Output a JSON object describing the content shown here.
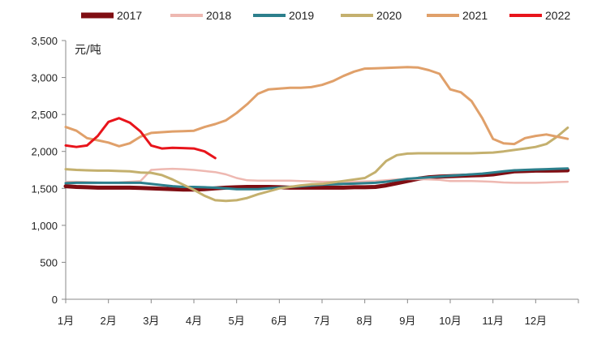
{
  "chart_data": {
    "type": "line",
    "ylabel": "元/吨",
    "ylim": [
      0,
      3500
    ],
    "y_ticks": [
      "0",
      "500",
      "1,000",
      "1,500",
      "2,000",
      "2,500",
      "3,000",
      "3,500"
    ],
    "y_tick_values": [
      0,
      500,
      1000,
      1500,
      2000,
      2500,
      3000,
      3500
    ],
    "categories": [
      "1月",
      "2月",
      "3月",
      "4月",
      "5月",
      "6月",
      "7月",
      "8月",
      "9月",
      "10月",
      "11月",
      "12月"
    ],
    "grid": false,
    "legend_position": "top",
    "series": [
      {
        "name": "2017",
        "color": "#7f0d12",
        "width": 5,
        "points": [
          [
            1,
            1530
          ],
          [
            1.25,
            1520
          ],
          [
            1.5,
            1515
          ],
          [
            1.75,
            1510
          ],
          [
            2,
            1510
          ],
          [
            2.25,
            1510
          ],
          [
            2.5,
            1510
          ],
          [
            2.75,
            1505
          ],
          [
            3,
            1500
          ],
          [
            3.25,
            1495
          ],
          [
            3.5,
            1490
          ],
          [
            3.75,
            1485
          ],
          [
            4,
            1485
          ],
          [
            4.25,
            1490
          ],
          [
            4.5,
            1500
          ],
          [
            4.75,
            1510
          ],
          [
            5,
            1515
          ],
          [
            5.25,
            1520
          ],
          [
            5.5,
            1520
          ],
          [
            5.75,
            1520
          ],
          [
            6,
            1515
          ],
          [
            6.25,
            1510
          ],
          [
            6.5,
            1510
          ],
          [
            6.75,
            1510
          ],
          [
            7,
            1510
          ],
          [
            7.25,
            1510
          ],
          [
            7.5,
            1510
          ],
          [
            7.75,
            1515
          ],
          [
            8,
            1515
          ],
          [
            8.25,
            1520
          ],
          [
            8.5,
            1540
          ],
          [
            8.75,
            1570
          ],
          [
            9,
            1600
          ],
          [
            9.25,
            1630
          ],
          [
            9.5,
            1650
          ],
          [
            9.75,
            1660
          ],
          [
            10,
            1665
          ],
          [
            10.25,
            1670
          ],
          [
            10.5,
            1675
          ],
          [
            10.75,
            1680
          ],
          [
            11,
            1690
          ],
          [
            11.25,
            1710
          ],
          [
            11.5,
            1730
          ],
          [
            11.75,
            1735
          ],
          [
            12,
            1740
          ],
          [
            12.25,
            1740
          ],
          [
            12.5,
            1742
          ],
          [
            12.75,
            1745
          ]
        ]
      },
      {
        "name": "2018",
        "color": "#eeb8b1",
        "width": 2.5,
        "points": [
          [
            1,
            1590
          ],
          [
            1.25,
            1590
          ],
          [
            1.5,
            1585
          ],
          [
            1.75,
            1580
          ],
          [
            2,
            1575
          ],
          [
            2.25,
            1580
          ],
          [
            2.5,
            1590
          ],
          [
            2.75,
            1600
          ],
          [
            3,
            1750
          ],
          [
            3.25,
            1760
          ],
          [
            3.5,
            1765
          ],
          [
            3.75,
            1760
          ],
          [
            4,
            1750
          ],
          [
            4.25,
            1735
          ],
          [
            4.5,
            1720
          ],
          [
            4.75,
            1690
          ],
          [
            5,
            1640
          ],
          [
            5.25,
            1610
          ],
          [
            5.5,
            1605
          ],
          [
            5.75,
            1605
          ],
          [
            6,
            1605
          ],
          [
            6.25,
            1605
          ],
          [
            6.5,
            1600
          ],
          [
            6.75,
            1595
          ],
          [
            7,
            1590
          ],
          [
            7.25,
            1590
          ],
          [
            7.5,
            1590
          ],
          [
            7.75,
            1590
          ],
          [
            8,
            1595
          ],
          [
            8.25,
            1600
          ],
          [
            8.5,
            1610
          ],
          [
            8.75,
            1620
          ],
          [
            9,
            1625
          ],
          [
            9.25,
            1625
          ],
          [
            9.5,
            1620
          ],
          [
            9.75,
            1615
          ],
          [
            10,
            1600
          ],
          [
            10.25,
            1600
          ],
          [
            10.5,
            1600
          ],
          [
            10.75,
            1595
          ],
          [
            11,
            1590
          ],
          [
            11.25,
            1580
          ],
          [
            11.5,
            1575
          ],
          [
            11.75,
            1575
          ],
          [
            12,
            1575
          ],
          [
            12.25,
            1580
          ],
          [
            12.5,
            1585
          ],
          [
            12.75,
            1590
          ]
        ]
      },
      {
        "name": "2019",
        "color": "#2c7f8c",
        "width": 3,
        "points": [
          [
            1,
            1570
          ],
          [
            1.25,
            1575
          ],
          [
            1.5,
            1575
          ],
          [
            1.75,
            1575
          ],
          [
            2,
            1575
          ],
          [
            2.25,
            1575
          ],
          [
            2.5,
            1575
          ],
          [
            2.75,
            1575
          ],
          [
            3,
            1560
          ],
          [
            3.25,
            1545
          ],
          [
            3.5,
            1530
          ],
          [
            3.75,
            1520
          ],
          [
            4,
            1520
          ],
          [
            4.25,
            1515
          ],
          [
            4.5,
            1510
          ],
          [
            4.75,
            1500
          ],
          [
            5,
            1490
          ],
          [
            5.25,
            1490
          ],
          [
            5.5,
            1490
          ],
          [
            5.75,
            1500
          ],
          [
            6,
            1510
          ],
          [
            6.25,
            1520
          ],
          [
            6.5,
            1530
          ],
          [
            6.75,
            1540
          ],
          [
            7,
            1550
          ],
          [
            7.25,
            1555
          ],
          [
            7.5,
            1560
          ],
          [
            7.75,
            1565
          ],
          [
            8,
            1570
          ],
          [
            8.25,
            1575
          ],
          [
            8.5,
            1590
          ],
          [
            8.75,
            1610
          ],
          [
            9,
            1630
          ],
          [
            9.25,
            1640
          ],
          [
            9.5,
            1650
          ],
          [
            9.75,
            1660
          ],
          [
            10,
            1670
          ],
          [
            10.25,
            1680
          ],
          [
            10.5,
            1690
          ],
          [
            10.75,
            1700
          ],
          [
            11,
            1715
          ],
          [
            11.25,
            1730
          ],
          [
            11.5,
            1745
          ],
          [
            11.75,
            1750
          ],
          [
            12,
            1755
          ],
          [
            12.25,
            1760
          ],
          [
            12.5,
            1765
          ],
          [
            12.75,
            1770
          ]
        ]
      },
      {
        "name": "2020",
        "color": "#c4b06e",
        "width": 3,
        "points": [
          [
            1,
            1760
          ],
          [
            1.25,
            1750
          ],
          [
            1.5,
            1745
          ],
          [
            1.75,
            1740
          ],
          [
            2,
            1740
          ],
          [
            2.25,
            1735
          ],
          [
            2.5,
            1730
          ],
          [
            2.75,
            1715
          ],
          [
            3,
            1710
          ],
          [
            3.25,
            1680
          ],
          [
            3.5,
            1620
          ],
          [
            3.75,
            1550
          ],
          [
            4,
            1480
          ],
          [
            4.25,
            1400
          ],
          [
            4.5,
            1340
          ],
          [
            4.75,
            1330
          ],
          [
            5,
            1340
          ],
          [
            5.25,
            1370
          ],
          [
            5.5,
            1420
          ],
          [
            5.75,
            1460
          ],
          [
            6,
            1500
          ],
          [
            6.25,
            1520
          ],
          [
            6.5,
            1540
          ],
          [
            6.75,
            1555
          ],
          [
            7,
            1560
          ],
          [
            7.25,
            1580
          ],
          [
            7.5,
            1600
          ],
          [
            7.75,
            1620
          ],
          [
            8,
            1640
          ],
          [
            8.25,
            1720
          ],
          [
            8.5,
            1870
          ],
          [
            8.75,
            1950
          ],
          [
            9,
            1970
          ],
          [
            9.25,
            1975
          ],
          [
            9.5,
            1975
          ],
          [
            9.75,
            1975
          ],
          [
            10,
            1975
          ],
          [
            10.25,
            1975
          ],
          [
            10.5,
            1975
          ],
          [
            10.75,
            1980
          ],
          [
            11,
            1985
          ],
          [
            11.25,
            2000
          ],
          [
            11.5,
            2020
          ],
          [
            11.75,
            2040
          ],
          [
            12,
            2060
          ],
          [
            12.25,
            2100
          ],
          [
            12.5,
            2200
          ],
          [
            12.75,
            2320
          ]
        ]
      },
      {
        "name": "2021",
        "color": "#e0a06a",
        "width": 3,
        "points": [
          [
            1,
            2330
          ],
          [
            1.25,
            2280
          ],
          [
            1.5,
            2180
          ],
          [
            1.75,
            2150
          ],
          [
            2,
            2120
          ],
          [
            2.25,
            2070
          ],
          [
            2.5,
            2110
          ],
          [
            2.75,
            2200
          ],
          [
            3,
            2250
          ],
          [
            3.25,
            2260
          ],
          [
            3.5,
            2270
          ],
          [
            3.75,
            2275
          ],
          [
            4,
            2280
          ],
          [
            4.25,
            2330
          ],
          [
            4.5,
            2370
          ],
          [
            4.75,
            2420
          ],
          [
            5,
            2520
          ],
          [
            5.25,
            2640
          ],
          [
            5.5,
            2780
          ],
          [
            5.75,
            2840
          ],
          [
            6,
            2850
          ],
          [
            6.25,
            2860
          ],
          [
            6.5,
            2860
          ],
          [
            6.75,
            2870
          ],
          [
            7,
            2900
          ],
          [
            7.25,
            2950
          ],
          [
            7.5,
            3020
          ],
          [
            7.75,
            3080
          ],
          [
            8,
            3120
          ],
          [
            8.25,
            3125
          ],
          [
            8.5,
            3130
          ],
          [
            8.75,
            3135
          ],
          [
            9,
            3140
          ],
          [
            9.25,
            3135
          ],
          [
            9.5,
            3100
          ],
          [
            9.75,
            3050
          ],
          [
            10,
            2840
          ],
          [
            10.25,
            2800
          ],
          [
            10.5,
            2680
          ],
          [
            10.75,
            2450
          ],
          [
            11,
            2170
          ],
          [
            11.25,
            2110
          ],
          [
            11.5,
            2100
          ],
          [
            11.75,
            2180
          ],
          [
            12,
            2210
          ],
          [
            12.25,
            2230
          ],
          [
            12.5,
            2200
          ],
          [
            12.75,
            2170
          ]
        ]
      },
      {
        "name": "2022",
        "color": "#e8141b",
        "width": 3,
        "points": [
          [
            1,
            2080
          ],
          [
            1.25,
            2060
          ],
          [
            1.5,
            2080
          ],
          [
            1.75,
            2210
          ],
          [
            2,
            2400
          ],
          [
            2.25,
            2450
          ],
          [
            2.5,
            2390
          ],
          [
            2.75,
            2270
          ],
          [
            3,
            2080
          ],
          [
            3.25,
            2040
          ],
          [
            3.5,
            2050
          ],
          [
            3.75,
            2045
          ],
          [
            4,
            2040
          ],
          [
            4.25,
            2000
          ],
          [
            4.5,
            1910
          ]
        ]
      }
    ]
  }
}
